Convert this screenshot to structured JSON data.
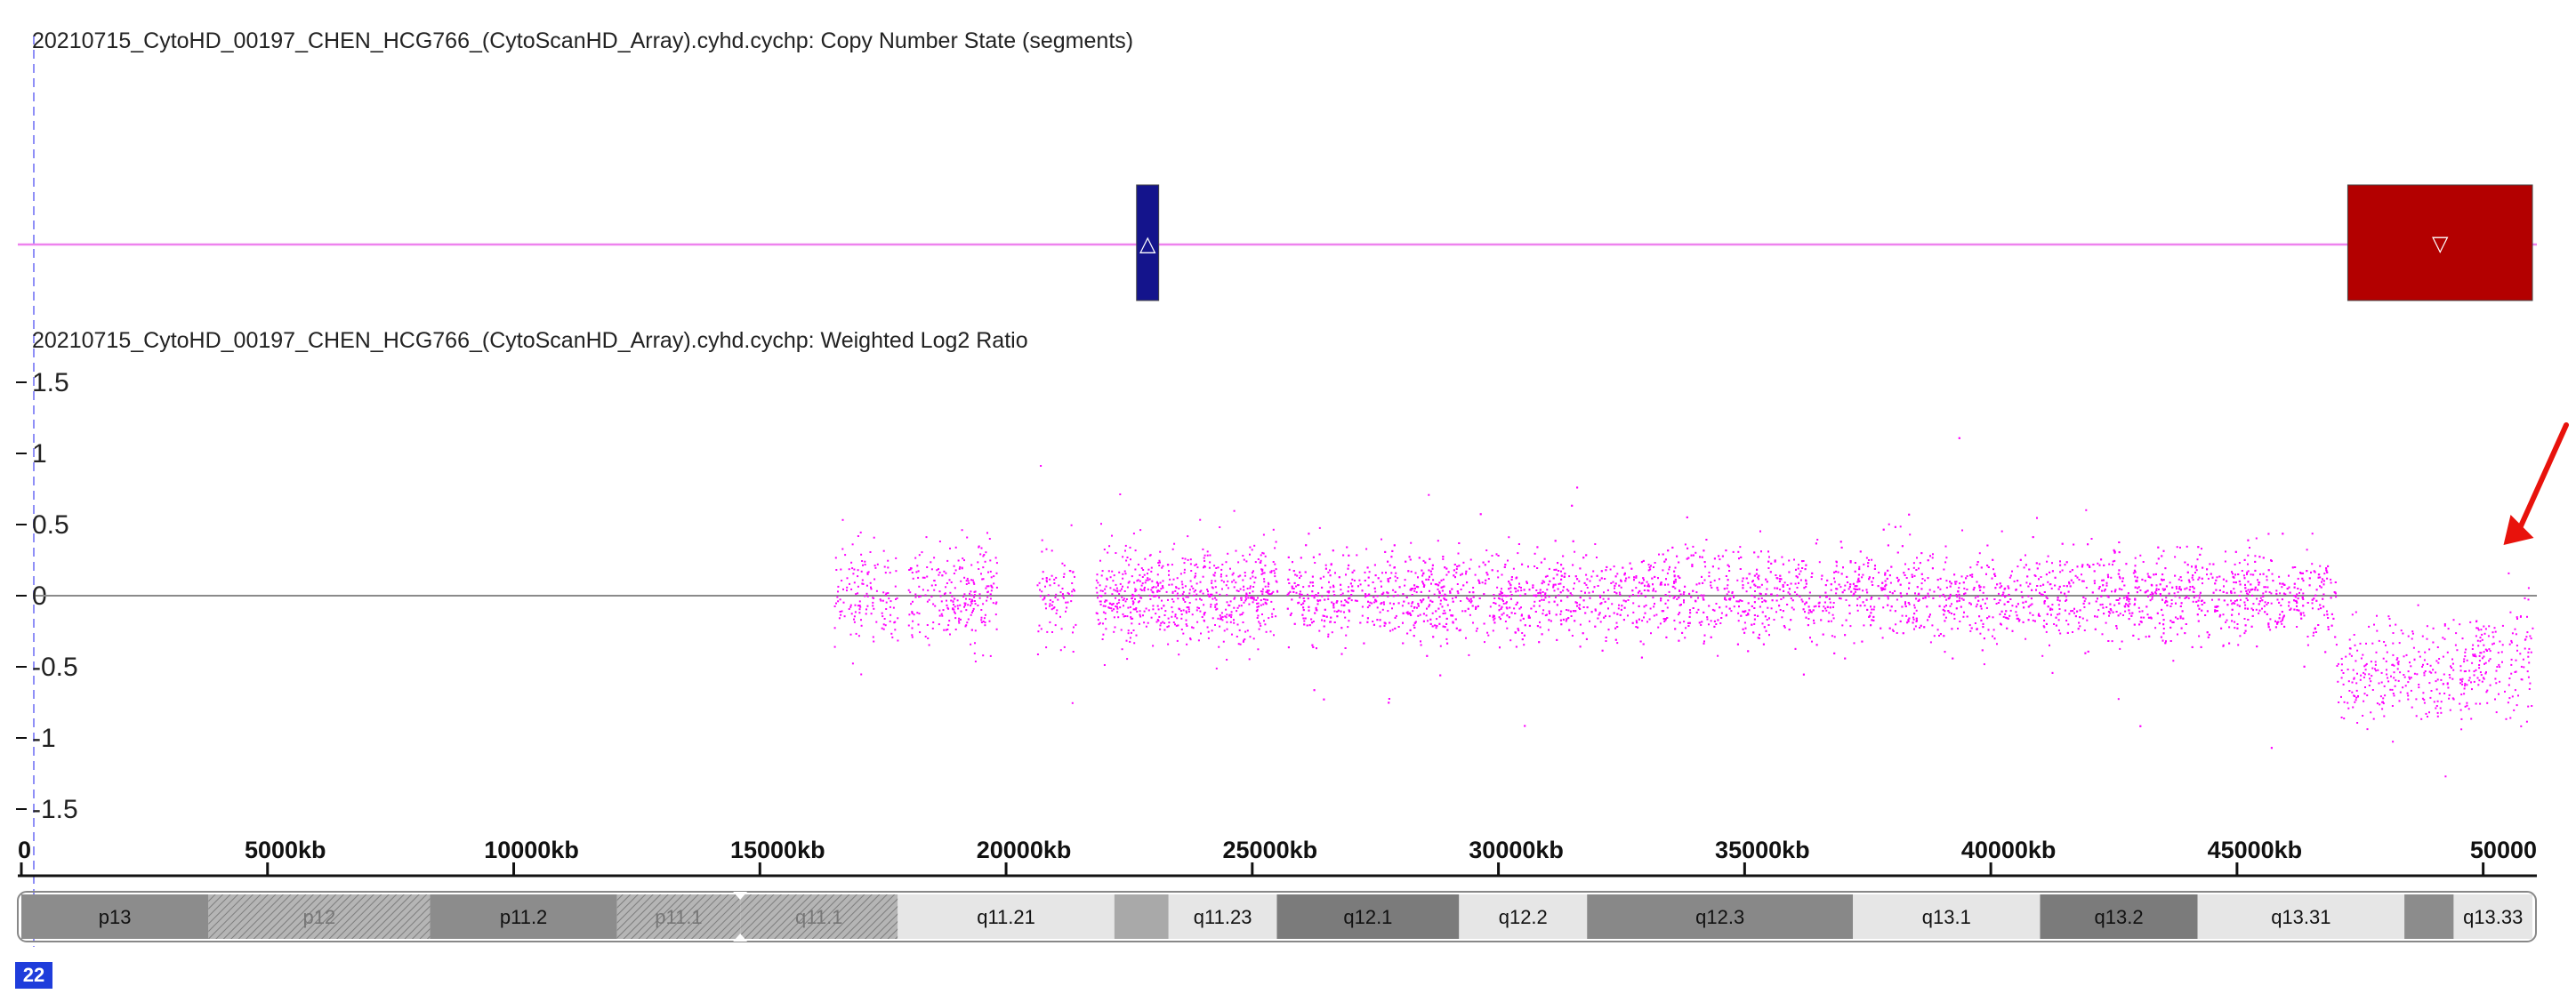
{
  "chart_data": [
    {
      "type": "scatter",
      "title": "20210715_CytoHD_00197_CHEN_HCG766_(CytoScanHD_Array).cyhd.cychp: Copy Number State (segments)",
      "baseline_label": "",
      "x_range_kb": [
        0,
        51000
      ],
      "segments": [
        {
          "start_kb": 22650,
          "end_kb": 23100,
          "state": "gain",
          "color": "#14148c",
          "glyph": "△"
        },
        {
          "start_kb": 47250,
          "end_kb": 51000,
          "state": "loss",
          "color": "#b30000",
          "glyph": "▽"
        }
      ],
      "line_color": "#ee82ee"
    },
    {
      "type": "scatter",
      "title": "20210715_CytoHD_00197_CHEN_HCG766_(CytoScanHD_Array).cyhd.cychp: Weighted Log2 Ratio",
      "xlabel": "",
      "ylabel": "",
      "ylim": [
        -1.5,
        1.5
      ],
      "yticks": [
        "1.5",
        "1",
        "0.5",
        "0",
        "-0.5",
        "-1",
        "-1.5"
      ],
      "ytick_values": [
        1.5,
        1,
        0.5,
        0,
        -0.5,
        -1,
        -1.5
      ],
      "point_color": "#ff00ff",
      "baseline_value": 0,
      "data_blocks": [
        {
          "start_kb": 16500,
          "end_kb": 17800,
          "mean": 0.0,
          "sd": 0.17,
          "density": 0.55
        },
        {
          "start_kb": 18000,
          "end_kb": 19800,
          "mean": 0.0,
          "sd": 0.17,
          "density": 0.7
        },
        {
          "start_kb": 20600,
          "end_kb": 21400,
          "mean": 0.0,
          "sd": 0.17,
          "density": 0.55
        },
        {
          "start_kb": 21800,
          "end_kb": 25500,
          "mean": 0.0,
          "sd": 0.17,
          "density": 0.9
        },
        {
          "start_kb": 25700,
          "end_kb": 47000,
          "mean": 0.0,
          "sd": 0.16,
          "density": 1.0
        },
        {
          "start_kb": 47000,
          "end_kb": 49800,
          "mean": -0.55,
          "sd": 0.18,
          "density": 0.55
        },
        {
          "start_kb": 49800,
          "end_kb": 51000,
          "mean": -0.45,
          "sd": 0.2,
          "density": 0.6
        }
      ],
      "annotation": {
        "type": "arrow",
        "color": "#e8120c",
        "points_to_kb": 49600,
        "points_to_value": 0.2
      }
    }
  ],
  "x_axis": {
    "ticks": [
      "0",
      "5000kb",
      "10000kb",
      "15000kb",
      "20000kb",
      "25000kb",
      "30000kb",
      "35000kb",
      "40000kb",
      "45000kb",
      "50000"
    ],
    "tick_values_kb": [
      0,
      5000,
      10000,
      15000,
      20000,
      25000,
      30000,
      35000,
      40000,
      45000,
      50000
    ]
  },
  "ideogram": {
    "bands": [
      {
        "name": "p13",
        "start_kb": 0,
        "end_kb": 3800,
        "fill": "#8c8c8c",
        "pattern": false,
        "text": "#111"
      },
      {
        "name": "p12",
        "start_kb": 3800,
        "end_kb": 8300,
        "fill": "#b8b8b8",
        "pattern": true,
        "text": "#777"
      },
      {
        "name": "p11.2",
        "start_kb": 8300,
        "end_kb": 12100,
        "fill": "#8c8c8c",
        "pattern": false,
        "text": "#111"
      },
      {
        "name": "p11.1",
        "start_kb": 12100,
        "end_kb": 14600,
        "fill": "#aaaaaa",
        "pattern": true,
        "text": "#777"
      },
      {
        "name": "q11.1",
        "start_kb": 14600,
        "end_kb": 17800,
        "fill": "#aaaaaa",
        "pattern": true,
        "text": "#777"
      },
      {
        "name": "q11.21",
        "start_kb": 17800,
        "end_kb": 22200,
        "fill": "#e6e6e6",
        "pattern": false,
        "text": "#111"
      },
      {
        "name": "",
        "start_kb": 22200,
        "end_kb": 23300,
        "fill": "#a9a9a9",
        "pattern": false,
        "text": "#111"
      },
      {
        "name": "q11.23",
        "start_kb": 23300,
        "end_kb": 25500,
        "fill": "#e6e6e6",
        "pattern": false,
        "text": "#111"
      },
      {
        "name": "q12.1",
        "start_kb": 25500,
        "end_kb": 29200,
        "fill": "#7b7b7b",
        "pattern": false,
        "text": "#111"
      },
      {
        "name": "q12.2",
        "start_kb": 29200,
        "end_kb": 31800,
        "fill": "#e6e6e6",
        "pattern": false,
        "text": "#111"
      },
      {
        "name": "q12.3",
        "start_kb": 31800,
        "end_kb": 37200,
        "fill": "#888888",
        "pattern": false,
        "text": "#111"
      },
      {
        "name": "q13.1",
        "start_kb": 37200,
        "end_kb": 41000,
        "fill": "#e6e6e6",
        "pattern": false,
        "text": "#111"
      },
      {
        "name": "q13.2",
        "start_kb": 41000,
        "end_kb": 44200,
        "fill": "#7b7b7b",
        "pattern": false,
        "text": "#111"
      },
      {
        "name": "q13.31",
        "start_kb": 44200,
        "end_kb": 48400,
        "fill": "#e6e6e6",
        "pattern": false,
        "text": "#111"
      },
      {
        "name": "",
        "start_kb": 48400,
        "end_kb": 49400,
        "fill": "#8c8c8c",
        "pattern": false,
        "text": "#111"
      },
      {
        "name": "q13.33",
        "start_kb": 49400,
        "end_kb": 51000,
        "fill": "#e6e6e6",
        "pattern": false,
        "text": "#111"
      }
    ]
  },
  "chromosome_badge": "22"
}
